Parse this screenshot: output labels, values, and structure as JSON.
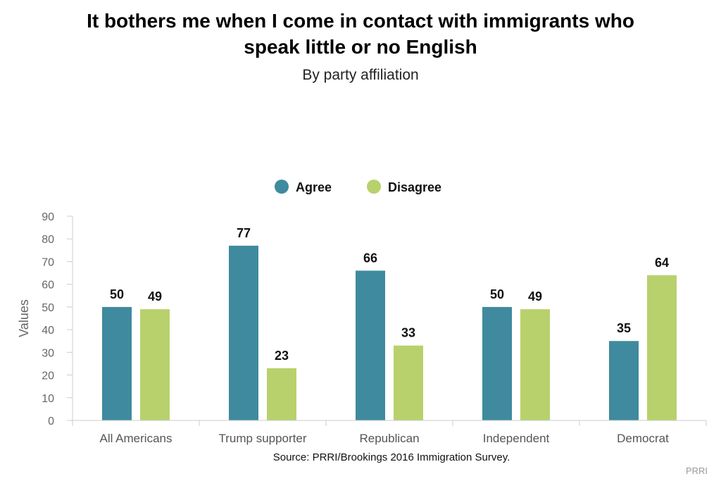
{
  "chart_data": {
    "type": "bar",
    "title": "It bothers me when I come in contact with immigrants who speak little or no English",
    "title_lines": [
      "It bothers me when I come in contact with immigrants who",
      "speak little or no English"
    ],
    "subtitle": "By party affiliation",
    "ylabel": "Values",
    "xlabel": "",
    "ylim": [
      0,
      90
    ],
    "yticks": [
      0,
      10,
      20,
      30,
      40,
      50,
      60,
      70,
      80,
      90
    ],
    "categories": [
      "All Americans",
      "Trump supporter",
      "Republican",
      "Independent",
      "Democrat"
    ],
    "series": [
      {
        "name": "Agree",
        "color": "#3f8a9e",
        "values": [
          50,
          77,
          66,
          50,
          35
        ]
      },
      {
        "name": "Disagree",
        "color": "#b8d16c",
        "values": [
          49,
          23,
          33,
          49,
          64
        ]
      }
    ],
    "legend_position": "top-center",
    "grid": false,
    "source": "Source: PRRI/Brookings 2016 Immigration Survey.",
    "credit": "PRRI"
  }
}
